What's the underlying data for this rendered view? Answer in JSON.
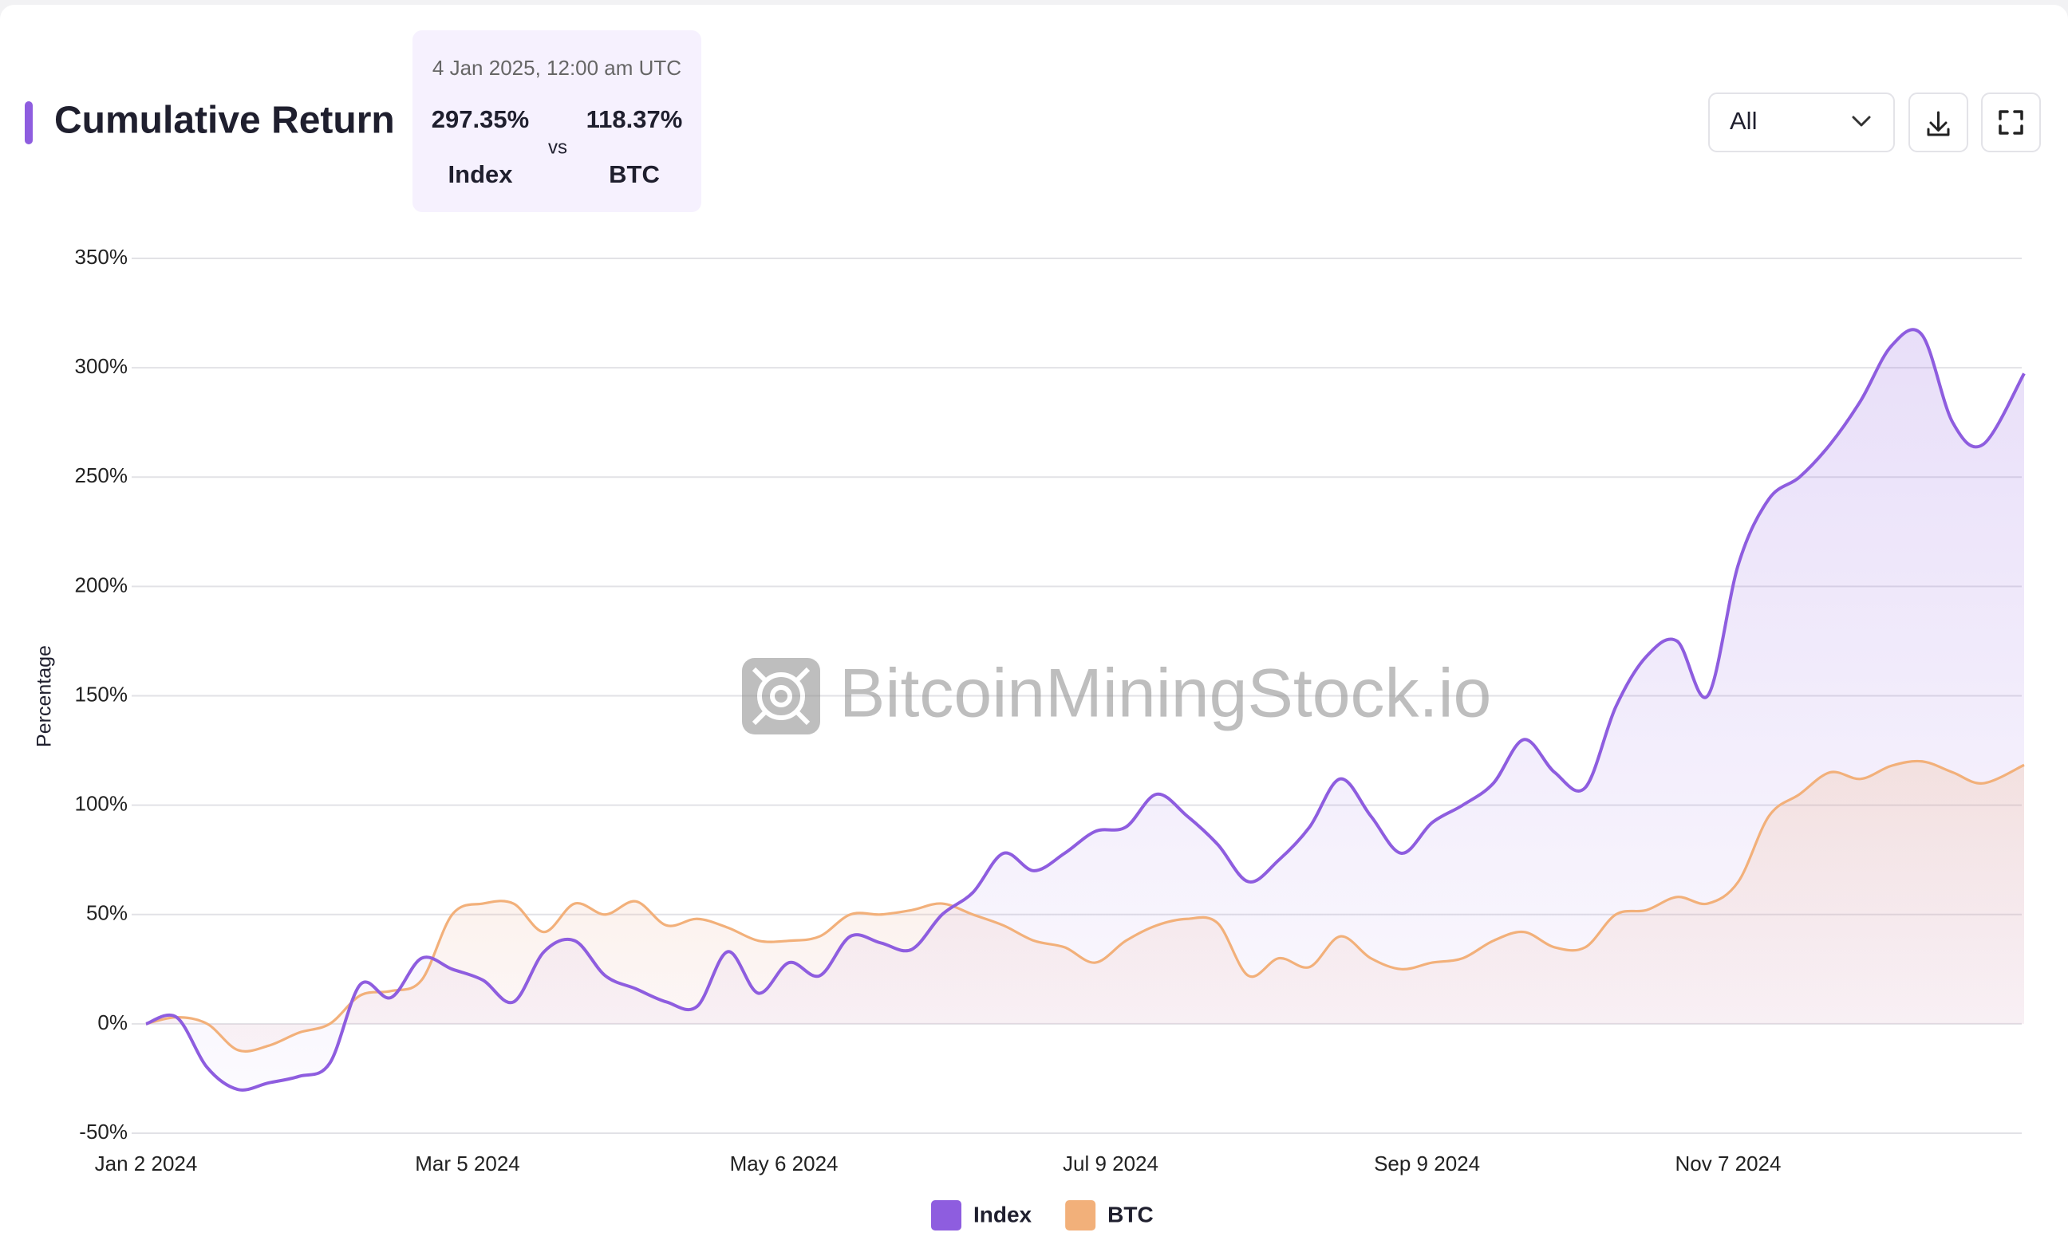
{
  "header": {
    "title": "Cumulative Return"
  },
  "tooltip": {
    "date": "4 Jan 2025, 12:00 am UTC",
    "values": [
      "297.35%",
      "118.37%"
    ],
    "separator": "vs"
  },
  "controls": {
    "range": "All"
  },
  "watermark": "BitcoinMiningStock.io",
  "chart_data": {
    "type": "line",
    "y_label": "Percentage",
    "x": [
      "2024-01-02",
      "2024-01-08",
      "2024-01-14",
      "2024-01-20",
      "2024-01-26",
      "2024-02-01",
      "2024-02-07",
      "2024-02-13",
      "2024-02-19",
      "2024-02-25",
      "2024-03-02",
      "2024-03-08",
      "2024-03-14",
      "2024-03-20",
      "2024-03-26",
      "2024-04-01",
      "2024-04-07",
      "2024-04-13",
      "2024-04-19",
      "2024-04-25",
      "2024-05-01",
      "2024-05-07",
      "2024-05-13",
      "2024-05-19",
      "2024-05-25",
      "2024-05-31",
      "2024-06-06",
      "2024-06-12",
      "2024-06-18",
      "2024-06-24",
      "2024-06-30",
      "2024-07-06",
      "2024-07-12",
      "2024-07-18",
      "2024-07-24",
      "2024-07-30",
      "2024-08-05",
      "2024-08-11",
      "2024-08-17",
      "2024-08-23",
      "2024-08-29",
      "2024-09-04",
      "2024-09-10",
      "2024-09-16",
      "2024-09-22",
      "2024-09-28",
      "2024-10-04",
      "2024-10-10",
      "2024-10-16",
      "2024-10-22",
      "2024-10-28",
      "2024-11-03",
      "2024-11-09",
      "2024-11-15",
      "2024-11-21",
      "2024-11-27",
      "2024-12-03",
      "2024-12-09",
      "2024-12-15",
      "2024-12-21",
      "2024-12-27",
      "2025-01-04"
    ],
    "series": [
      {
        "name": "Index",
        "color": "#8e5ddf",
        "values": [
          0,
          3,
          -20,
          -30,
          -27,
          -24,
          -18,
          18,
          12,
          30,
          25,
          20,
          10,
          33,
          38,
          22,
          16,
          10,
          8,
          33,
          14,
          28,
          22,
          40,
          37,
          34,
          50,
          60,
          78,
          70,
          78,
          88,
          90,
          105,
          95,
          82,
          65,
          75,
          90,
          112,
          95,
          78,
          92,
          100,
          110,
          130,
          115,
          108,
          145,
          168,
          175,
          150,
          210,
          240,
          250,
          265,
          285,
          310,
          315,
          275,
          265,
          297.35
        ]
      },
      {
        "name": "BTC",
        "color": "#f2b07a",
        "values": [
          0,
          3,
          0,
          -12,
          -10,
          -4,
          0,
          13,
          15,
          20,
          50,
          55,
          55,
          42,
          55,
          50,
          56,
          45,
          48,
          44,
          38,
          38,
          40,
          50,
          50,
          52,
          55,
          50,
          45,
          38,
          35,
          28,
          38,
          45,
          48,
          46,
          22,
          30,
          26,
          40,
          30,
          25,
          28,
          30,
          38,
          42,
          35,
          35,
          50,
          52,
          58,
          55,
          65,
          95,
          105,
          115,
          112,
          118,
          120,
          115,
          110,
          118.37
        ]
      }
    ],
    "xlim": [
      "2024-01-02",
      "2025-01-04"
    ],
    "xticks": [
      {
        "value": "2024-01-02",
        "label": "Jan 2 2024"
      },
      {
        "value": "2024-03-05",
        "label": "Mar 5 2024"
      },
      {
        "value": "2024-05-06",
        "label": "May 6 2024"
      },
      {
        "value": "2024-07-09",
        "label": "Jul 9 2024"
      },
      {
        "value": "2024-09-09",
        "label": "Sep 9 2024"
      },
      {
        "value": "2024-11-07",
        "label": "Nov 7 2024"
      }
    ],
    "ylim": [
      -50,
      350
    ],
    "yticks": [
      {
        "value": -50,
        "label": "-50%"
      },
      {
        "value": 0,
        "label": "0%"
      },
      {
        "value": 50,
        "label": "50%"
      },
      {
        "value": 100,
        "label": "100%"
      },
      {
        "value": 150,
        "label": "150%"
      },
      {
        "value": 200,
        "label": "200%"
      },
      {
        "value": 250,
        "label": "250%"
      },
      {
        "value": 300,
        "label": "300%"
      },
      {
        "value": 350,
        "label": "350%"
      }
    ],
    "grid": true,
    "legend": "bottom"
  }
}
